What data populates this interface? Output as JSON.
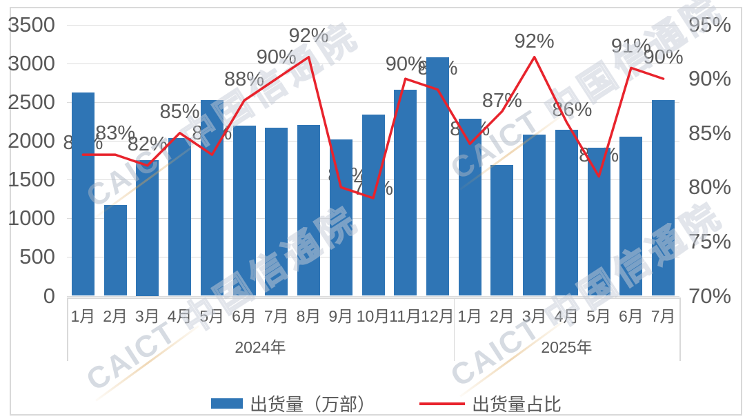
{
  "watermark": {
    "logo_text": "CAICT",
    "cn_text": "中国信通院"
  },
  "colors": {
    "bar": "#2F75B5",
    "line": "#E8232C",
    "grid": "#dcdcdc",
    "axis_text": "#595959",
    "border": "#d9d9d9"
  },
  "legend": {
    "bar_label": "出货量（万部）",
    "line_label": "出货量占比"
  },
  "chart_data": {
    "type": "bar",
    "note": "combo chart: bars on left axis, line on right percent axis",
    "categories": [
      "1月",
      "2月",
      "3月",
      "4月",
      "5月",
      "6月",
      "7月",
      "8月",
      "9月",
      "10月",
      "11月",
      "12月",
      "1月",
      "2月",
      "3月",
      "4月",
      "5月",
      "6月",
      "7月"
    ],
    "year_groups": [
      {
        "label": "2024年",
        "span": 12
      },
      {
        "label": "2025年",
        "span": 7
      }
    ],
    "series": [
      {
        "name": "出货量（万部）",
        "type": "bar",
        "values": [
          2620,
          1175,
          1750,
          2035,
          2525,
          2195,
          2170,
          2205,
          2015,
          2340,
          2660,
          3080,
          2285,
          1690,
          2080,
          2140,
          1910,
          2050,
          2525
        ]
      },
      {
        "name": "出货量占比",
        "type": "line",
        "values": [
          83,
          83,
          82,
          85,
          83,
          88,
          90,
          92,
          80,
          79,
          90,
          89,
          84,
          87,
          92,
          86,
          81,
          91,
          90
        ],
        "labels": [
          "83%",
          "83%",
          "82%",
          "85%",
          "83%",
          "88%",
          "90%",
          "92%",
          "80%",
          "79%",
          "90%",
          "89%",
          "84%",
          "87%",
          "92%",
          "86%",
          "81%",
          "91%",
          "90%"
        ]
      }
    ],
    "left_axis": {
      "min": 0,
      "max": 3500,
      "step": 500,
      "tick_labels": [
        "0",
        "500",
        "1000",
        "1500",
        "2000",
        "2500",
        "3000",
        "3500"
      ]
    },
    "right_axis": {
      "min": 70,
      "max": 95,
      "step": 5,
      "tick_labels": [
        "70%",
        "75%",
        "80%",
        "85%",
        "90%",
        "95%"
      ]
    },
    "grid": true,
    "legend_position": "bottom"
  }
}
